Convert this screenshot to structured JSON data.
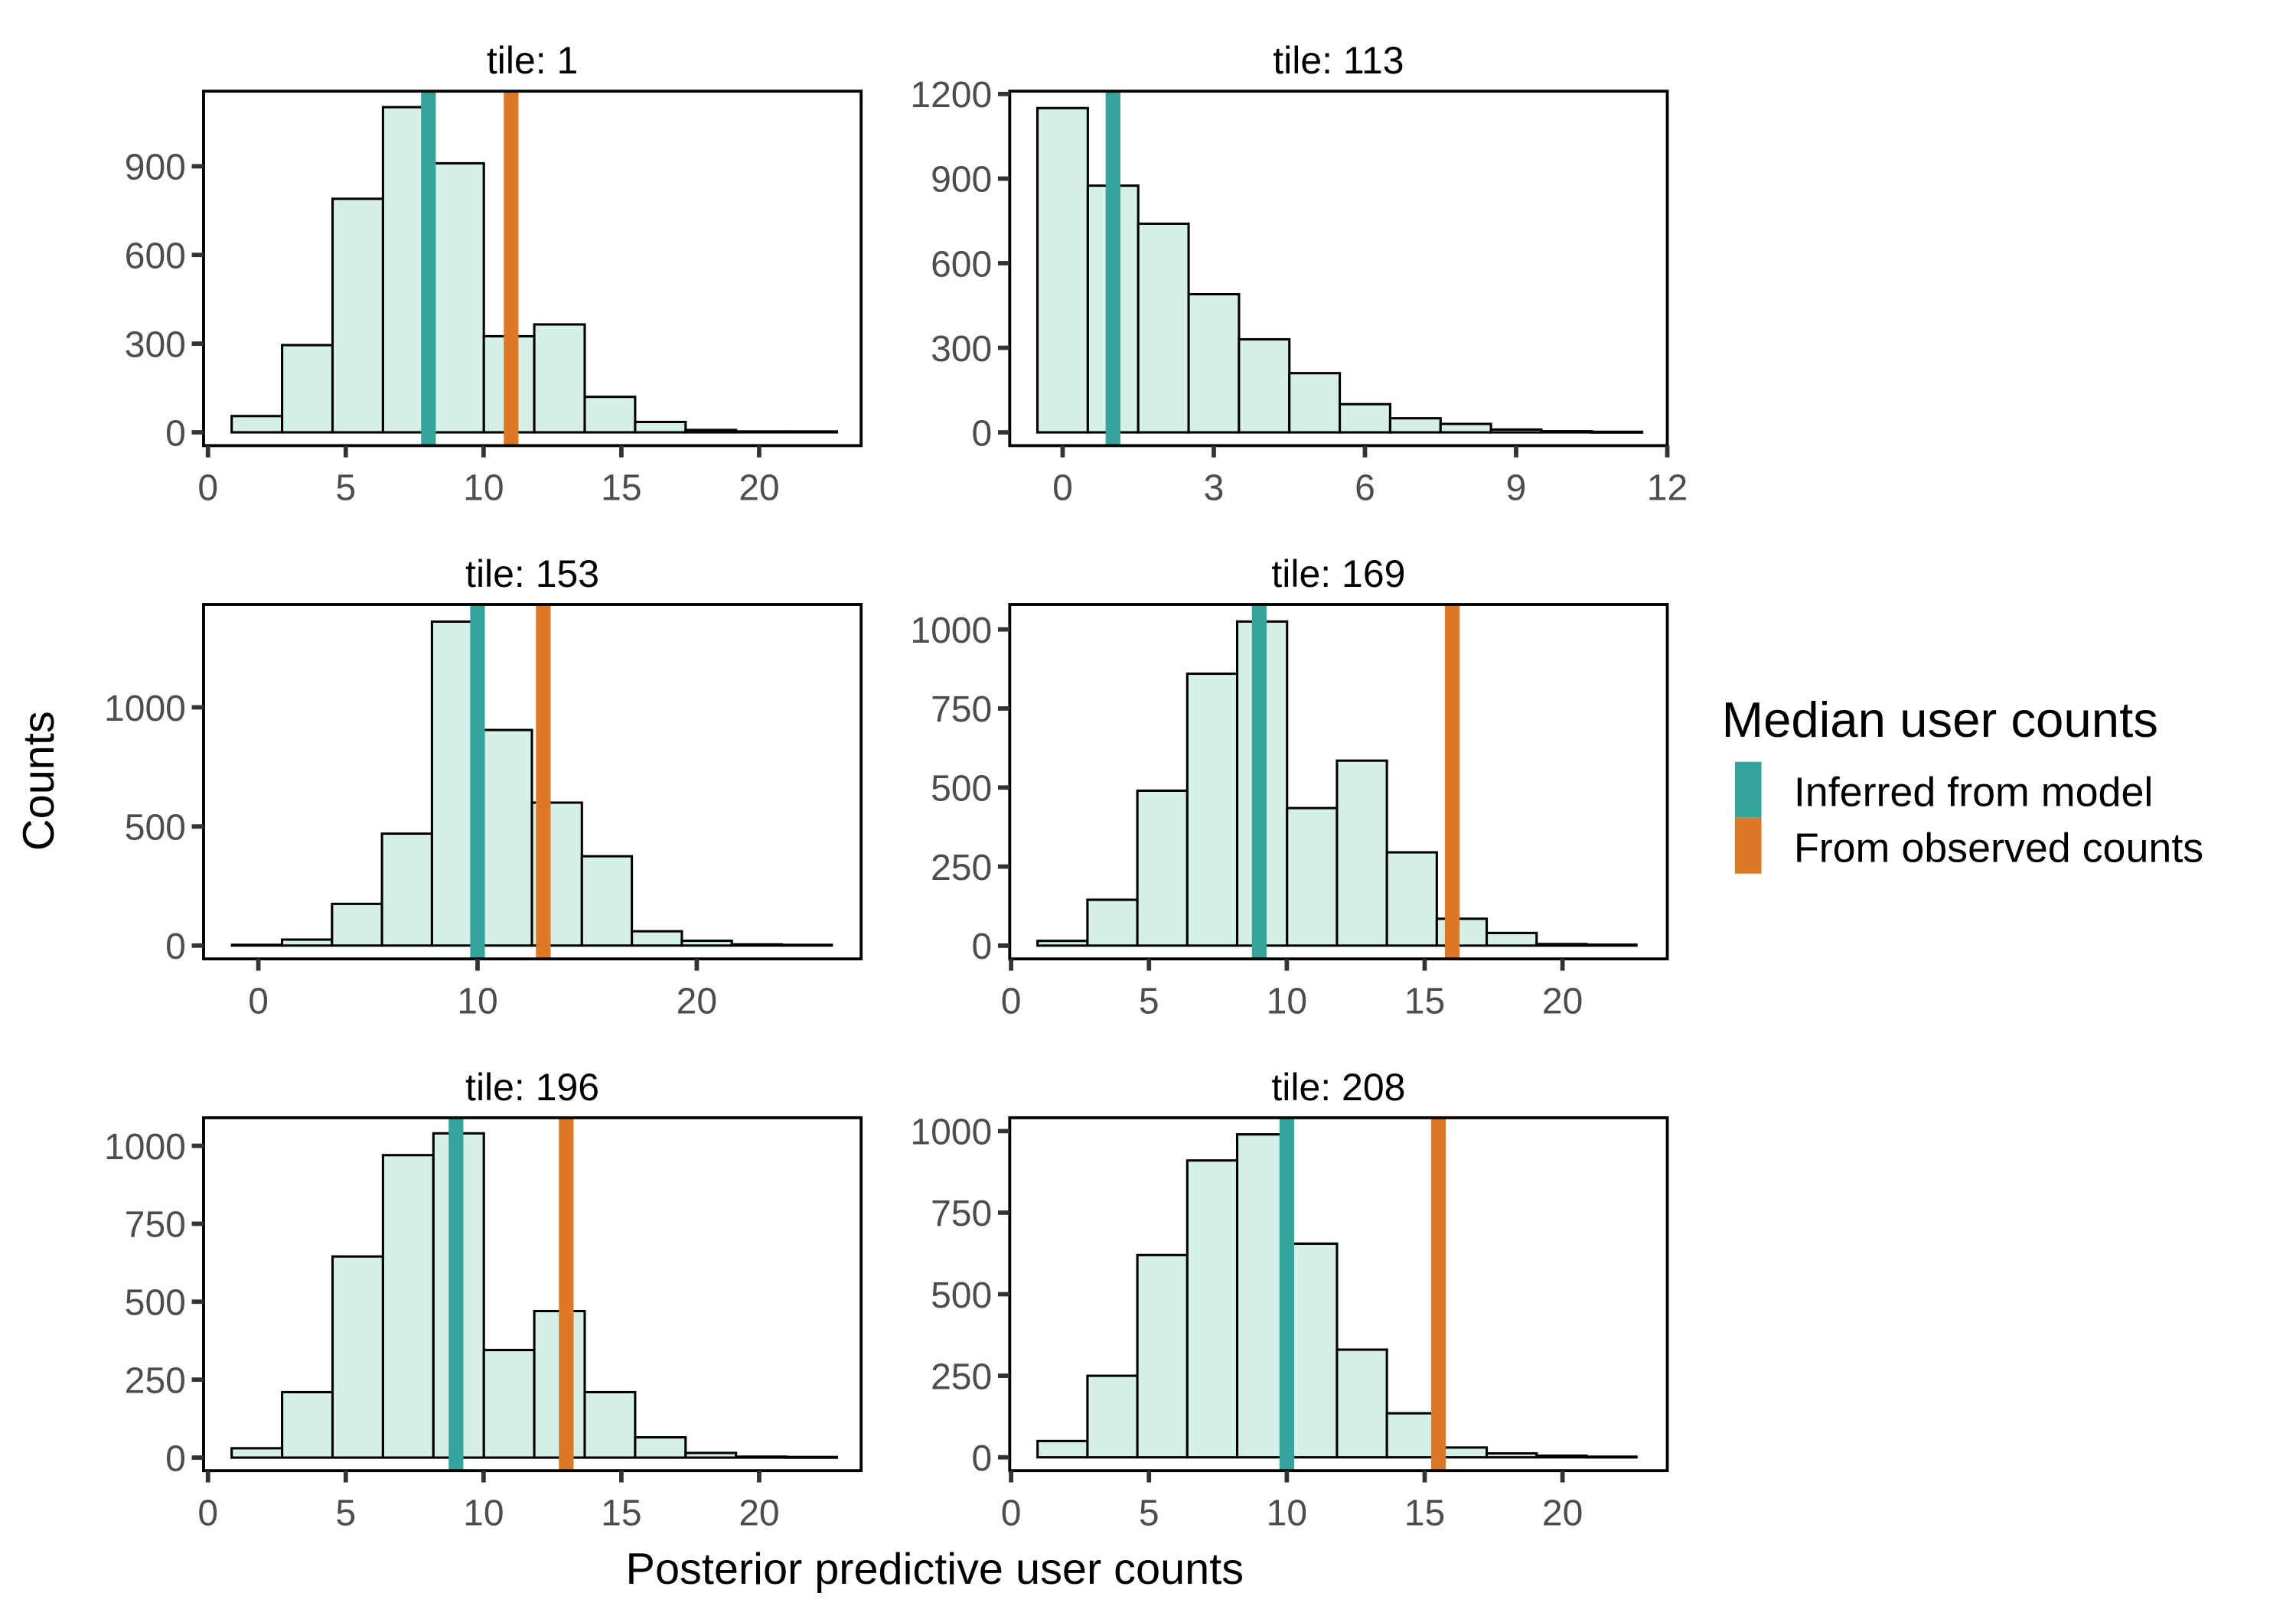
{
  "chart_data": {
    "type": "bar",
    "subtype": "faceted histogram",
    "xlabel": "Posterior predictive user counts",
    "ylabel": "Counts",
    "grid": false,
    "legend": {
      "title": "Median user counts",
      "placement": "right",
      "entries": [
        {
          "label": "Inferred from model",
          "color": "#36a39d"
        },
        {
          "label": "From observed counts",
          "color": "#dd7826"
        }
      ]
    },
    "bar_fill": "#d5f0e8",
    "panels": [
      {
        "title": "tile: 1",
        "xlim": [
          -0.16,
          23.7
        ],
        "ylim": [
          -45,
          1154
        ],
        "xticks": [
          "0",
          "5",
          "10",
          "15",
          "20"
        ],
        "yticks": [
          "0",
          "300",
          "600",
          "900"
        ],
        "bin_start": 0.86,
        "bin_width": 1.83,
        "values": [
          55,
          295,
          790,
          1100,
          910,
          325,
          365,
          120,
          35,
          8,
          3,
          3
        ],
        "inferred_median": 8,
        "observed_median": 11
      },
      {
        "title": "tile: 113",
        "xlim": [
          -1.05,
          12
        ],
        "ylim": [
          -47,
          1210
        ],
        "xticks": [
          "0",
          "3",
          "6",
          "9",
          "12"
        ],
        "yticks": [
          "0",
          "300",
          "600",
          "900",
          "1200"
        ],
        "bin_start": -0.5,
        "bin_width": 1,
        "values": [
          1150,
          875,
          740,
          490,
          330,
          210,
          100,
          50,
          30,
          10,
          4,
          2
        ],
        "inferred_median": 1,
        "observed_median": null
      },
      {
        "title": "tile: 153",
        "xlim": [
          -2.5,
          27.5
        ],
        "ylim": [
          -56,
          1432
        ],
        "xticks": [
          "0",
          "10",
          "20"
        ],
        "yticks": [
          "0",
          "500",
          "1000"
        ],
        "bin_start": -1.2,
        "bin_width": 2.28,
        "values": [
          3,
          25,
          175,
          470,
          1360,
          905,
          600,
          375,
          60,
          20,
          5,
          3
        ],
        "inferred_median": 10,
        "observed_median": 13
      },
      {
        "title": "tile: 169",
        "xlim": [
          -0.05,
          23.8
        ],
        "ylim": [
          -42,
          1079
        ],
        "xticks": [
          "0",
          "5",
          "10",
          "15",
          "20"
        ],
        "yticks": [
          "0",
          "250",
          "500",
          "750",
          "1000"
        ],
        "bin_start": 0.96,
        "bin_width": 1.81,
        "values": [
          15,
          145,
          490,
          860,
          1025,
          435,
          585,
          295,
          85,
          40,
          5,
          3
        ],
        "inferred_median": 9,
        "observed_median": 16
      },
      {
        "title": "tile: 196",
        "xlim": [
          -0.16,
          23.7
        ],
        "ylim": [
          -42,
          1090
        ],
        "xticks": [
          "0",
          "5",
          "10",
          "15",
          "20"
        ],
        "yticks": [
          "0",
          "250",
          "500",
          "750",
          "1000"
        ],
        "bin_start": 0.86,
        "bin_width": 1.83,
        "values": [
          30,
          210,
          645,
          970,
          1040,
          345,
          470,
          210,
          65,
          15,
          3,
          2
        ],
        "inferred_median": 9,
        "observed_median": 13
      },
      {
        "title": "tile: 208",
        "xlim": [
          -0.05,
          23.8
        ],
        "ylim": [
          -41,
          1041
        ],
        "xticks": [
          "0",
          "5",
          "10",
          "15",
          "20"
        ],
        "yticks": [
          "0",
          "250",
          "500",
          "750",
          "1000"
        ],
        "bin_start": 0.96,
        "bin_width": 1.81,
        "values": [
          50,
          250,
          620,
          910,
          990,
          655,
          330,
          135,
          30,
          12,
          5,
          2
        ],
        "inferred_median": 10,
        "observed_median": 15.5
      }
    ]
  }
}
